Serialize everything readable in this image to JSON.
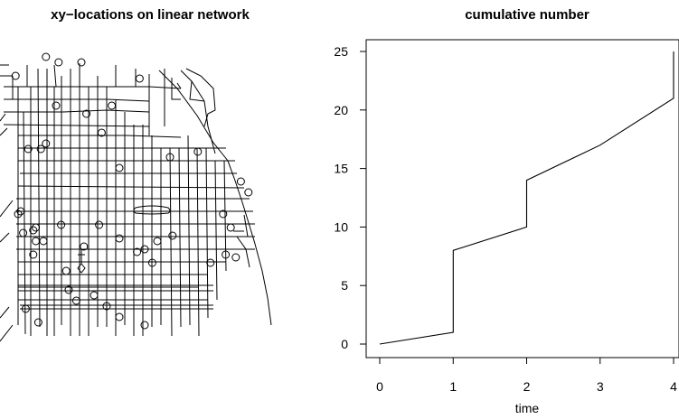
{
  "chart_data": [
    {
      "type": "map",
      "title": "xy−locations on linear network",
      "points": [
        {
          "x": 0.3,
          "y": 0.97
        },
        {
          "x": 0.16,
          "y": 0.99
        },
        {
          "x": 0.21,
          "y": 0.97
        },
        {
          "x": 0.04,
          "y": 0.92
        },
        {
          "x": 0.53,
          "y": 0.91
        },
        {
          "x": 0.2,
          "y": 0.81
        },
        {
          "x": 0.09,
          "y": 0.65
        },
        {
          "x": 0.32,
          "y": 0.78
        },
        {
          "x": 0.16,
          "y": 0.67
        },
        {
          "x": 0.14,
          "y": 0.65
        },
        {
          "x": 0.42,
          "y": 0.81
        },
        {
          "x": 0.38,
          "y": 0.71
        },
        {
          "x": 0.65,
          "y": 0.62
        },
        {
          "x": 0.76,
          "y": 0.64
        },
        {
          "x": 0.45,
          "y": 0.58
        },
        {
          "x": 0.93,
          "y": 0.53
        },
        {
          "x": 0.96,
          "y": 0.49
        },
        {
          "x": 0.06,
          "y": 0.42
        },
        {
          "x": 0.05,
          "y": 0.41
        },
        {
          "x": 0.12,
          "y": 0.36
        },
        {
          "x": 0.11,
          "y": 0.35
        },
        {
          "x": 0.07,
          "y": 0.34
        },
        {
          "x": 0.45,
          "y": 0.32
        },
        {
          "x": 0.37,
          "y": 0.37
        },
        {
          "x": 0.22,
          "y": 0.37
        },
        {
          "x": 0.15,
          "y": 0.31
        },
        {
          "x": 0.52,
          "y": 0.27
        },
        {
          "x": 0.86,
          "y": 0.41
        },
        {
          "x": 0.89,
          "y": 0.36
        },
        {
          "x": 0.11,
          "y": 0.26
        },
        {
          "x": 0.31,
          "y": 0.29
        },
        {
          "x": 0.87,
          "y": 0.26
        },
        {
          "x": 0.24,
          "y": 0.2
        },
        {
          "x": 0.12,
          "y": 0.31
        },
        {
          "x": 0.6,
          "y": 0.31
        },
        {
          "x": 0.66,
          "y": 0.33
        },
        {
          "x": 0.25,
          "y": 0.13
        },
        {
          "x": 0.55,
          "y": 0.28
        },
        {
          "x": 0.58,
          "y": 0.23
        },
        {
          "x": 0.81,
          "y": 0.23
        },
        {
          "x": 0.35,
          "y": 0.11
        },
        {
          "x": 0.08,
          "y": 0.06
        },
        {
          "x": 0.13,
          "y": 0.01
        },
        {
          "x": 0.45,
          "y": 0.03
        },
        {
          "x": 0.28,
          "y": 0.09
        },
        {
          "x": 0.4,
          "y": 0.07
        },
        {
          "x": 0.55,
          "y": 0.0
        },
        {
          "x": 0.91,
          "y": 0.25
        }
      ]
    },
    {
      "type": "line",
      "title": "cumulative number",
      "xlabel": "time",
      "ylabel": "",
      "xlim": [
        0,
        4
      ],
      "ylim": [
        0,
        25
      ],
      "xticks": [
        0,
        1,
        2,
        3,
        4
      ],
      "yticks": [
        0,
        5,
        10,
        15,
        20,
        25
      ],
      "x": [
        0,
        1,
        1,
        2,
        2,
        3,
        4,
        4
      ],
      "y": [
        0,
        1,
        8,
        10,
        14,
        17,
        21,
        25
      ]
    }
  ]
}
